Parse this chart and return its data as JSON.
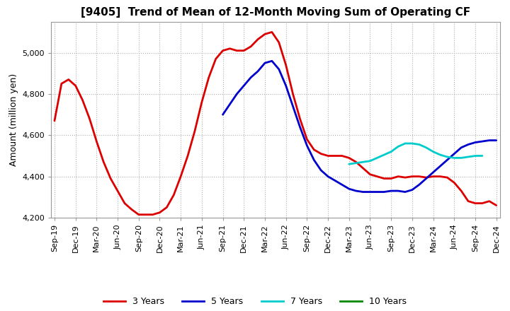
{
  "title": "[9405]  Trend of Mean of 12-Month Moving Sum of Operating CF",
  "ylabel": "Amount (million yen)",
  "ylim": [
    4200,
    5150
  ],
  "yticks": [
    4200,
    4400,
    4600,
    4800,
    5000
  ],
  "background_color": "#ffffff",
  "plot_bg_color": "#ffffff",
  "grid_color": "#b0b0b0",
  "series": {
    "3yr": {
      "color": "#dd0000",
      "linewidth": 2.0,
      "label": "3 Years",
      "x": [
        0,
        1,
        2,
        3,
        4,
        5,
        6,
        7,
        8,
        9,
        10,
        11,
        12,
        13,
        14,
        15,
        16,
        17,
        18,
        19,
        20,
        21,
        22,
        23,
        24,
        25,
        26,
        27,
        28,
        29,
        30,
        31,
        32,
        33,
        34,
        35,
        36,
        37,
        38,
        39,
        40,
        41,
        42,
        43,
        44,
        45,
        46,
        47,
        48,
        49,
        50,
        51,
        52,
        53,
        54,
        55,
        56,
        57,
        58,
        59,
        60,
        61,
        62,
        63
      ],
      "y": [
        4670,
        4850,
        4870,
        4840,
        4770,
        4680,
        4570,
        4470,
        4390,
        4330,
        4270,
        4240,
        4215,
        4215,
        4215,
        4225,
        4250,
        4310,
        4400,
        4500,
        4620,
        4760,
        4880,
        4970,
        5010,
        5020,
        5010,
        5010,
        5030,
        5065,
        5090,
        5100,
        5050,
        4940,
        4800,
        4680,
        4580,
        4530,
        4510,
        4500,
        4500,
        4500,
        4490,
        4470,
        4440,
        4410,
        4400,
        4390,
        4390,
        4400,
        4395,
        4400,
        4400,
        4395,
        4400,
        4400,
        4395,
        4370,
        4330,
        4280,
        4270,
        4270,
        4280,
        4260
      ]
    },
    "5yr": {
      "color": "#0000cc",
      "linewidth": 2.0,
      "label": "5 Years",
      "x": [
        24,
        25,
        26,
        27,
        28,
        29,
        30,
        31,
        32,
        33,
        34,
        35,
        36,
        37,
        38,
        39,
        40,
        41,
        42,
        43,
        44,
        45,
        46,
        47,
        48,
        49,
        50,
        51,
        52,
        53,
        54,
        55,
        56,
        57,
        58,
        59,
        60,
        61,
        62,
        63
      ],
      "y": [
        4700,
        4750,
        4800,
        4840,
        4880,
        4910,
        4950,
        4960,
        4920,
        4840,
        4740,
        4640,
        4550,
        4480,
        4430,
        4400,
        4380,
        4360,
        4340,
        4330,
        4325,
        4325,
        4325,
        4325,
        4330,
        4330,
        4325,
        4335,
        4360,
        4390,
        4420,
        4450,
        4480,
        4510,
        4540,
        4555,
        4565,
        4570,
        4575,
        4575
      ]
    },
    "7yr": {
      "color": "#00cccc",
      "linewidth": 2.0,
      "label": "7 Years",
      "x": [
        42,
        43,
        44,
        45,
        46,
        47,
        48,
        49,
        50,
        51,
        52,
        53,
        54,
        55,
        56,
        57,
        58,
        59,
        60,
        61
      ],
      "y": [
        4460,
        4465,
        4470,
        4475,
        4490,
        4505,
        4520,
        4545,
        4560,
        4560,
        4555,
        4540,
        4520,
        4505,
        4495,
        4490,
        4490,
        4495,
        4500,
        4500
      ]
    },
    "10yr": {
      "color": "#008800",
      "linewidth": 2.0,
      "label": "10 Years",
      "x": [],
      "y": []
    }
  },
  "xtick_labels": [
    "Sep-19",
    "Dec-19",
    "Mar-20",
    "Jun-20",
    "Sep-20",
    "Dec-20",
    "Mar-21",
    "Jun-21",
    "Sep-21",
    "Dec-21",
    "Mar-22",
    "Jun-22",
    "Sep-22",
    "Dec-22",
    "Mar-23",
    "Jun-23",
    "Sep-23",
    "Dec-23",
    "Mar-24",
    "Jun-24",
    "Sep-24",
    "Dec-24"
  ],
  "xtick_positions": [
    0,
    3,
    6,
    9,
    12,
    15,
    18,
    21,
    24,
    27,
    30,
    33,
    36,
    39,
    42,
    45,
    48,
    51,
    54,
    57,
    60,
    63
  ]
}
